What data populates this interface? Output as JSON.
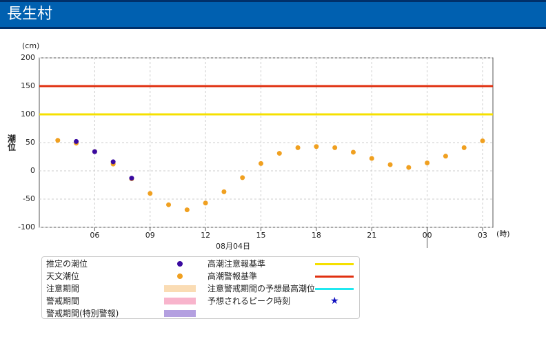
{
  "header": {
    "title": "長生村"
  },
  "chart_data": {
    "type": "scatter",
    "y_unit": "(cm)",
    "x_unit": "(時)",
    "ylabel": "潮位",
    "date_label": "08月04日",
    "xlim": [
      3,
      27.56
    ],
    "ylim": [
      -100,
      200
    ],
    "xticks": [
      {
        "value": 6,
        "label": "06"
      },
      {
        "value": 9,
        "label": "09"
      },
      12,
      15,
      18,
      21,
      {
        "value": 24,
        "label": "00"
      },
      {
        "value": 27,
        "label": "03"
      }
    ],
    "yticks": [
      200,
      150,
      100,
      50,
      0,
      -50,
      -100
    ],
    "day_start": 24,
    "grid": true,
    "series": [
      {
        "name": "推定の潮位",
        "color": "#3a0aa0",
        "x": [
          5,
          6,
          7,
          8
        ],
        "values": [
          52,
          34,
          16,
          -13
        ]
      },
      {
        "name": "天文潮位",
        "color": "#f0a020",
        "x": [
          4,
          5,
          6,
          7,
          8,
          9,
          10,
          11,
          12,
          13,
          14,
          15,
          16,
          17,
          18,
          19,
          20,
          21,
          22,
          23,
          24,
          25,
          26,
          27
        ],
        "values": [
          54,
          49,
          34,
          12,
          -14,
          -40,
          -60,
          -69,
          -57,
          -37,
          -12,
          13,
          31,
          41,
          43,
          41,
          33,
          22,
          11,
          6,
          14,
          26,
          41,
          53
        ]
      }
    ],
    "reference_lines": [
      {
        "name": "高潮注意報基準",
        "value": 100,
        "color": "#f5e000"
      },
      {
        "name": "高潮警報基準",
        "value": 150,
        "color": "#e03010"
      }
    ],
    "legend_extra": [
      {
        "name": "注意期間",
        "color": "#fadcb4",
        "shape": "rect"
      },
      {
        "name": "警戒期間",
        "color": "#f8b4cc",
        "shape": "rect"
      },
      {
        "name": "警戒期間(特別警報)",
        "color": "#b4a0e0",
        "shape": "rect"
      },
      {
        "name": "注意警戒期間の予想最高潮位",
        "color": "#20e8f0",
        "shape": "line"
      },
      {
        "name": "予想されるピーク時刻",
        "color": "#1010c0",
        "shape": "star"
      }
    ]
  }
}
